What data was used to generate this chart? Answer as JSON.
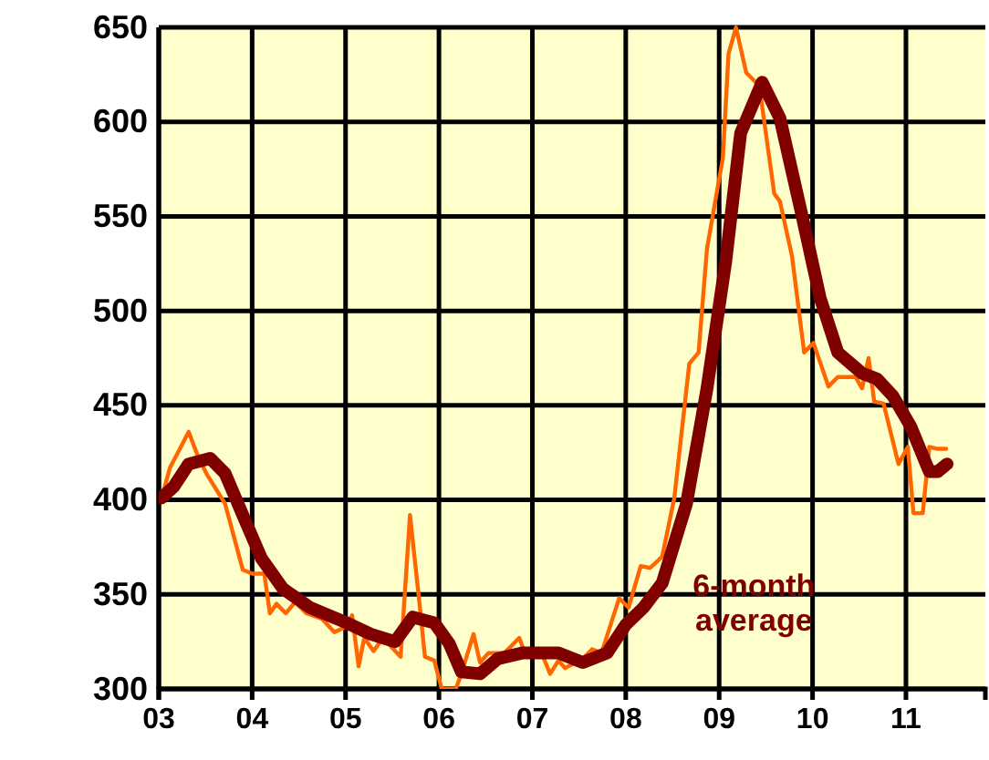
{
  "chart_data": {
    "type": "line",
    "x": [
      2003.03,
      2003.12,
      2003.32,
      2003.42,
      2003.51,
      2003.71,
      2003.9,
      2004.0,
      2004.13,
      2004.19,
      2004.26,
      2004.36,
      2004.46,
      2004.58,
      2004.75,
      2004.88,
      2005.01,
      2005.07,
      2005.14,
      2005.2,
      2005.3,
      2005.4,
      2005.59,
      2005.69,
      2005.79,
      2005.85,
      2005.95,
      2006.03,
      2006.18,
      2006.24,
      2006.37,
      2006.44,
      2006.53,
      2006.7,
      2006.86,
      2006.92,
      2007.09,
      2007.19,
      2007.28,
      2007.35,
      2007.54,
      2007.64,
      2007.74,
      2007.93,
      2008.03,
      2008.16,
      2008.26,
      2008.39,
      2008.52,
      2008.68,
      2008.78,
      2008.87,
      2009.04,
      2009.1,
      2009.18,
      2009.29,
      2009.43,
      2009.59,
      2009.65,
      2009.78,
      2009.91,
      2010.01,
      2010.17,
      2010.27,
      2010.46,
      2010.53,
      2010.6,
      2010.66,
      2010.76,
      2010.92,
      2011.02,
      2011.08,
      2011.18,
      2011.25,
      2011.34,
      2011.43
    ],
    "series": [
      {
        "color": "#ff6600",
        "values": [
          401,
          417,
          436,
          423,
          414,
          398,
          363,
          361,
          361,
          340,
          345,
          340,
          346,
          340,
          337,
          330,
          333,
          339,
          312,
          327,
          320,
          327,
          317,
          392,
          346,
          317,
          315,
          300,
          300,
          308,
          329,
          314,
          319,
          319,
          327,
          319,
          320,
          308,
          315,
          311,
          316,
          321,
          319,
          348,
          343,
          365,
          364,
          370,
          401,
          472,
          478,
          533,
          581,
          636,
          650,
          626,
          619,
          562,
          558,
          529,
          478,
          483,
          460,
          465,
          465,
          459,
          475,
          452,
          451,
          419,
          428,
          393,
          393,
          428,
          427,
          427
        ]
      },
      {
        "name": "6-month average",
        "color": "#800000",
        "x": [
          2003.03,
          2003.16,
          2003.32,
          2003.55,
          2003.71,
          2003.9,
          2004.1,
          2004.33,
          2004.62,
          2005.01,
          2005.27,
          2005.53,
          2005.72,
          2005.95,
          2006.11,
          2006.24,
          2006.44,
          2006.63,
          2006.89,
          2007.28,
          2007.54,
          2007.8,
          2008.0,
          2008.19,
          2008.39,
          2008.65,
          2008.87,
          2009.07,
          2009.23,
          2009.46,
          2009.65,
          2009.88,
          2010.08,
          2010.27,
          2010.53,
          2010.69,
          2010.86,
          2011.05,
          2011.25,
          2011.34,
          2011.44
        ],
        "values": [
          401,
          407,
          419,
          422,
          414,
          392,
          369,
          353,
          343,
          335,
          329,
          325,
          338,
          335,
          324,
          309,
          308,
          316,
          319,
          319,
          314,
          319,
          334,
          343,
          356,
          398,
          459,
          526,
          594,
          621,
          602,
          552,
          507,
          478,
          467,
          464,
          455,
          439,
          415,
          415,
          419
        ]
      }
    ],
    "xlim": [
      2003,
      2011.85
    ],
    "xticks": [
      {
        "value": 2003,
        "label": "03"
      },
      {
        "value": 2004,
        "label": "04"
      },
      {
        "value": 2005,
        "label": "05"
      },
      {
        "value": 2006,
        "label": "06"
      },
      {
        "value": 2007,
        "label": "07"
      },
      {
        "value": 2008,
        "label": "08"
      },
      {
        "value": 2009,
        "label": "09"
      },
      {
        "value": 2010,
        "label": "10"
      },
      {
        "value": 2011,
        "label": "11"
      }
    ],
    "ylim": [
      300,
      650
    ],
    "yticks": [
      300,
      350,
      400,
      450,
      500,
      550,
      600,
      650
    ],
    "grid": true,
    "legend": false
  }
}
